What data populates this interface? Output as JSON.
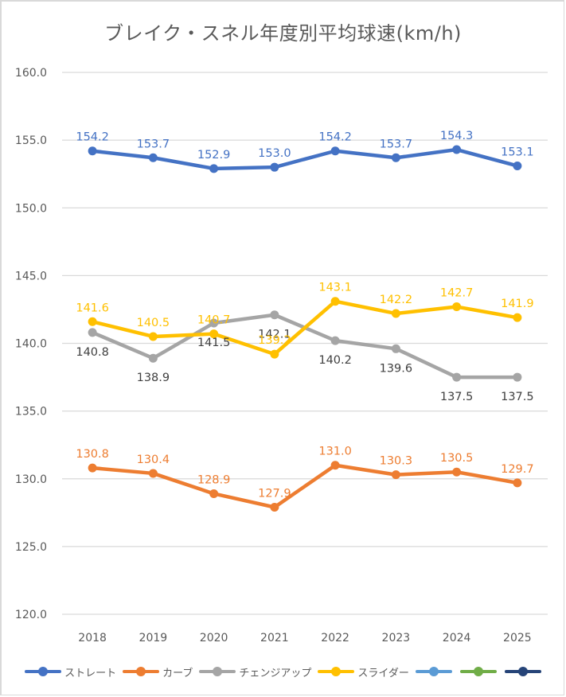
{
  "chart_data": {
    "type": "line",
    "title": "ブレイク・スネル年度別平均球速(km/h)",
    "xlabel": "",
    "ylabel": "",
    "categories": [
      "2018",
      "2019",
      "2020",
      "2021",
      "2022",
      "2023",
      "2024",
      "2025"
    ],
    "ylim": [
      120.0,
      160.0
    ],
    "yticks": [
      "120.0",
      "125.0",
      "130.0",
      "135.0",
      "140.0",
      "145.0",
      "150.0",
      "155.0",
      "160.0"
    ],
    "ytick_values": [
      120,
      125,
      130,
      135,
      140,
      145,
      150,
      155,
      160
    ],
    "grid": true,
    "legend_position": "bottom",
    "series": [
      {
        "name": "ストレート",
        "color": "#4472c4",
        "values": [
          154.2,
          153.7,
          152.9,
          153.0,
          154.2,
          153.7,
          154.3,
          153.1
        ],
        "labels": [
          "154.2",
          "153.7",
          "152.9",
          "153.0",
          "154.2",
          "153.7",
          "154.3",
          "153.1"
        ],
        "label_position": "above",
        "label_color": "#4472c4"
      },
      {
        "name": "カーブ",
        "color": "#ed7d31",
        "values": [
          130.8,
          130.4,
          128.9,
          127.9,
          131.0,
          130.3,
          130.5,
          129.7
        ],
        "labels": [
          "130.8",
          "130.4",
          "128.9",
          "127.9",
          "131.0",
          "130.3",
          "130.5",
          "129.7"
        ],
        "label_position": "above",
        "label_color": "#ed7d31"
      },
      {
        "name": "チェンジアップ",
        "color": "#a5a5a5",
        "values": [
          140.8,
          138.9,
          141.5,
          142.1,
          140.2,
          139.6,
          137.5,
          137.5
        ],
        "labels": [
          "140.8",
          "138.9",
          "141.5",
          "142.1",
          "140.2",
          "139.6",
          "137.5",
          "137.5"
        ],
        "label_position": "below",
        "label_color": "#404040"
      },
      {
        "name": "スライダー",
        "color": "#ffc000",
        "values": [
          141.6,
          140.5,
          140.7,
          139.2,
          143.1,
          142.2,
          142.7,
          141.9
        ],
        "labels": [
          "141.6",
          "140.5",
          "140.7",
          "139.2",
          "143.1",
          "142.2",
          "142.7",
          "141.9"
        ],
        "label_position": "above",
        "label_color": "#ffc000"
      },
      {
        "name": "",
        "color": "#5b9bd5",
        "values": []
      },
      {
        "name": "",
        "color": "#70ad47",
        "values": []
      },
      {
        "name": "",
        "color": "#264478",
        "values": []
      }
    ]
  }
}
